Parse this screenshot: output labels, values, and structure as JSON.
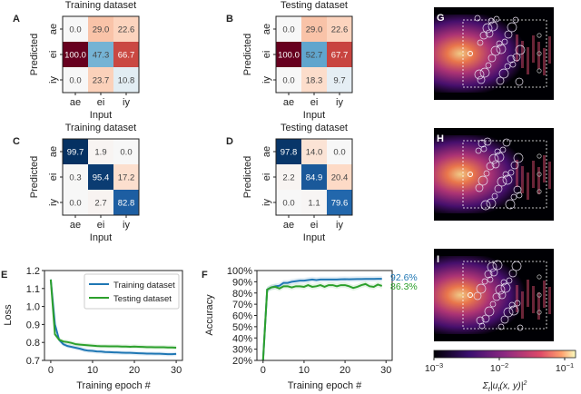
{
  "chart_data": [
    {
      "panel": "A",
      "type": "heatmap",
      "title": "Training dataset",
      "xlabel": "Input",
      "ylabel": "Predicted",
      "x_categories": [
        "ae",
        "ei",
        "iy"
      ],
      "y_categories": [
        "ae",
        "ei",
        "iy"
      ],
      "values": [
        [
          "0.0",
          "29.0",
          "22.6"
        ],
        [
          "100.0",
          "47.3",
          "66.7"
        ],
        [
          "0.0",
          "23.7",
          "10.8"
        ]
      ]
    },
    {
      "panel": "B",
      "type": "heatmap",
      "title": "Testing dataset",
      "xlabel": "Input",
      "ylabel": "Predicted",
      "x_categories": [
        "ae",
        "ei",
        "iy"
      ],
      "y_categories": [
        "ae",
        "ei",
        "iy"
      ],
      "values": [
        [
          "0.0",
          "29.0",
          "22.6"
        ],
        [
          "100.0",
          "52.7",
          "67.7"
        ],
        [
          "0.0",
          "18.3",
          "9.7"
        ]
      ]
    },
    {
      "panel": "C",
      "type": "heatmap",
      "title": "Training dataset",
      "xlabel": "Input",
      "ylabel": "Predicted",
      "x_categories": [
        "ae",
        "ei",
        "iy"
      ],
      "y_categories": [
        "ae",
        "ei",
        "iy"
      ],
      "values": [
        [
          "99.7",
          "1.9",
          "0.0"
        ],
        [
          "0.3",
          "95.4",
          "17.2"
        ],
        [
          "0.0",
          "2.7",
          "82.8"
        ]
      ]
    },
    {
      "panel": "D",
      "type": "heatmap",
      "title": "Testing dataset",
      "xlabel": "Input",
      "ylabel": "Predicted",
      "x_categories": [
        "ae",
        "ei",
        "iy"
      ],
      "y_categories": [
        "ae",
        "ei",
        "iy"
      ],
      "values": [
        [
          "97.8",
          "14.0",
          "0.0"
        ],
        [
          "2.2",
          "84.9",
          "20.4"
        ],
        [
          "0.0",
          "1.1",
          "79.6"
        ]
      ]
    },
    {
      "panel": "E",
      "type": "line",
      "xlabel": "Training epoch #",
      "ylabel": "Loss",
      "xlim": [
        -1.5,
        31.5
      ],
      "ylim": [
        0.7,
        1.2
      ],
      "xticks": [
        "0",
        "10",
        "20",
        "30"
      ],
      "yticks": [
        "0.7",
        "0.8",
        "0.9",
        "1.0",
        "1.1",
        "1.2"
      ],
      "legend": "top-right",
      "series": [
        {
          "name": "Training dataset",
          "color": "#1f77b4",
          "x": [
            0,
            1,
            2,
            3,
            4,
            5,
            6,
            7,
            8,
            9,
            10,
            11,
            12,
            13,
            14,
            15,
            16,
            17,
            18,
            19,
            20,
            21,
            22,
            23,
            24,
            25,
            26,
            27,
            28,
            29,
            30
          ],
          "values": [
            1.15,
            0.9,
            0.815,
            0.79,
            0.78,
            0.775,
            0.77,
            0.765,
            0.758,
            0.754,
            0.753,
            0.75,
            0.749,
            0.747,
            0.746,
            0.745,
            0.744,
            0.743,
            0.742,
            0.742,
            0.741,
            0.74,
            0.739,
            0.738,
            0.738,
            0.737,
            0.737,
            0.736,
            0.735,
            0.735,
            0.736
          ]
        },
        {
          "name": "Testing dataset",
          "color": "#2ca02c",
          "x": [
            0,
            1,
            2,
            3,
            4,
            5,
            6,
            7,
            8,
            9,
            10,
            11,
            12,
            13,
            14,
            15,
            16,
            17,
            18,
            19,
            20,
            21,
            22,
            23,
            24,
            25,
            26,
            27,
            28,
            29,
            30
          ],
          "values": [
            1.15,
            0.845,
            0.815,
            0.805,
            0.802,
            0.797,
            0.79,
            0.788,
            0.786,
            0.784,
            0.782,
            0.78,
            0.779,
            0.779,
            0.778,
            0.778,
            0.778,
            0.777,
            0.777,
            0.776,
            0.777,
            0.776,
            0.775,
            0.774,
            0.774,
            0.773,
            0.773,
            0.773,
            0.772,
            0.772,
            0.771
          ]
        }
      ]
    },
    {
      "panel": "F",
      "type": "line",
      "xlabel": "Training epoch #",
      "ylabel": "Accuracy",
      "xlim": [
        -1.5,
        31.5
      ],
      "ylim": [
        20,
        100
      ],
      "xticks": [
        "0",
        "10",
        "20",
        "30"
      ],
      "yticks": [
        "20%",
        "30%",
        "40%",
        "50%",
        "60%",
        "70%",
        "80%",
        "90%",
        "100%"
      ],
      "series": [
        {
          "name": "Training dataset",
          "color": "#1f77b4",
          "final_label": "92.6%",
          "x": [
            0,
            1,
            2,
            3,
            4,
            5,
            6,
            7,
            8,
            9,
            10,
            11,
            12,
            13,
            14,
            15,
            16,
            17,
            18,
            19,
            20,
            21,
            22,
            23,
            24,
            25,
            26,
            27,
            28,
            29
          ],
          "values": [
            20,
            83,
            85,
            86,
            86.5,
            89,
            89,
            90,
            90.5,
            91,
            91,
            91.5,
            92,
            91.5,
            92,
            92,
            92,
            92,
            92,
            92.2,
            92.3,
            92.2,
            92.3,
            92.4,
            92.4,
            92.5,
            92.5,
            92.5,
            92.6,
            92.6
          ]
        },
        {
          "name": "Testing dataset",
          "color": "#2ca02c",
          "final_label": "86.3%",
          "x": [
            0,
            1,
            2,
            3,
            4,
            5,
            6,
            7,
            8,
            9,
            10,
            11,
            12,
            13,
            14,
            15,
            16,
            17,
            18,
            19,
            20,
            21,
            22,
            23,
            24,
            25,
            26,
            27,
            28,
            29
          ],
          "values": [
            20,
            83,
            85,
            85.5,
            84,
            86,
            86,
            85,
            86,
            86,
            85.5,
            87,
            85.5,
            86,
            87,
            85.5,
            87,
            87,
            86,
            87,
            87,
            86,
            84.5,
            85.5,
            87,
            88,
            86,
            85.5,
            87.5,
            86.3
          ]
        }
      ]
    },
    {
      "panel": "G",
      "type": "heatmap",
      "image": "field intensity map"
    },
    {
      "panel": "H",
      "type": "heatmap",
      "image": "field intensity map"
    },
    {
      "panel": "I",
      "type": "heatmap",
      "image": "field intensity map"
    }
  ],
  "colorbar": {
    "ticks": [
      "10",
      "10",
      "10"
    ],
    "exponents": [
      "−3",
      "−2",
      "−1"
    ],
    "label_sum": "Σ",
    "label_sub": "t",
    "label_body": "|u",
    "label_sub2": "t",
    "label_args": "(x, y)|",
    "label_pow": "2"
  },
  "panel_letters": [
    "A",
    "B",
    "C",
    "D",
    "E",
    "F",
    "G",
    "H",
    "I"
  ]
}
